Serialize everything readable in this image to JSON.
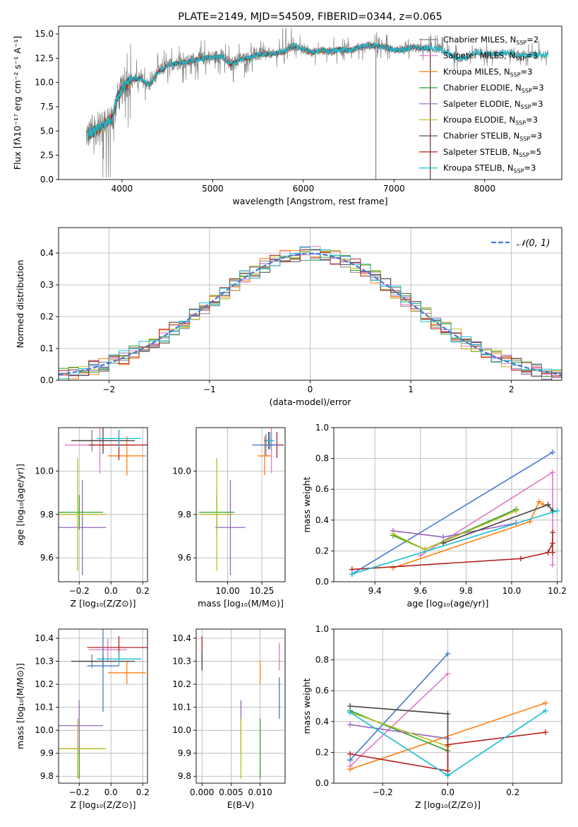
{
  "colors": {
    "chabrier_miles": "#7f7f7f",
    "salpeter_miles": "#e377c2",
    "kroupa_miles": "#ff7f0e",
    "chabrier_elodie": "#2ca02c",
    "salpeter_elodie": "#9467bd",
    "kroupa_elodie": "#bcbd22",
    "chabrier_stelib": "#444444",
    "salpeter_stelib": "#b22222",
    "kroupa_stelib": "#17becf",
    "normal": "#4878cf"
  },
  "chart_data": [
    {
      "id": "spectrum",
      "type": "line",
      "title": "PLATE=2149, MJD=54509, FIBERID=0344, z=0.065",
      "xlabel": "wavelength [Angstrom, rest frame]",
      "ylabel": "Flux [fλ10⁻¹⁷ erg cm⁻² s⁻¹ A⁻¹]",
      "xlim": [
        3300,
        8850
      ],
      "ylim": [
        0,
        15.8
      ],
      "xticks": [
        4000,
        5000,
        6000,
        7000,
        8000
      ],
      "yticks": [
        0.0,
        2.5,
        5.0,
        7.5,
        10.0,
        12.5,
        15.0
      ],
      "legend_position": "right",
      "legend": [
        {
          "key": "chabrier_miles",
          "pre": "Chabrier MILES, N",
          "sub": "SSP",
          "post": "=2"
        },
        {
          "key": "salpeter_miles",
          "pre": "Salpeter MILES, N",
          "sub": "SSP",
          "post": "=3"
        },
        {
          "key": "kroupa_miles",
          "pre": "Kroupa MILES, N",
          "sub": "SSP",
          "post": "=3"
        },
        {
          "key": "chabrier_elodie",
          "pre": "Chabrier ELODIE, N",
          "sub": "SSP",
          "post": "=3"
        },
        {
          "key": "salpeter_elodie",
          "pre": "Salpeter ELODIE, N",
          "sub": "SSP",
          "post": "=3"
        },
        {
          "key": "kroupa_elodie",
          "pre": "Kroupa ELODIE, N",
          "sub": "SSP",
          "post": "=3"
        },
        {
          "key": "chabrier_stelib",
          "pre": "Chabrier STELIB, N",
          "sub": "SSP",
          "post": "=3"
        },
        {
          "key": "salpeter_stelib",
          "pre": "Salpeter STELIB, N",
          "sub": "SSP",
          "post": "=5"
        },
        {
          "key": "kroupa_stelib",
          "pre": "Kroupa STELIB, N",
          "sub": "SSP",
          "post": "=3"
        }
      ],
      "continuum": [
        [
          3600,
          4.5
        ],
        [
          3700,
          5.0
        ],
        [
          3800,
          5.6
        ],
        [
          3900,
          6.5
        ],
        [
          3950,
          8.5
        ],
        [
          4000,
          9.2
        ],
        [
          4100,
          10.3
        ],
        [
          4200,
          10.4
        ],
        [
          4300,
          9.7
        ],
        [
          4400,
          11.1
        ],
        [
          4500,
          11.7
        ],
        [
          4600,
          12.0
        ],
        [
          4700,
          12.1
        ],
        [
          4800,
          12.3
        ],
        [
          4900,
          12.5
        ],
        [
          5000,
          12.6
        ],
        [
          5100,
          12.7
        ],
        [
          5200,
          11.8
        ],
        [
          5300,
          12.4
        ],
        [
          5400,
          12.5
        ],
        [
          5500,
          12.9
        ],
        [
          5600,
          12.9
        ],
        [
          5700,
          13.0
        ],
        [
          5800,
          13.2
        ],
        [
          5900,
          13.8
        ],
        [
          6000,
          13.4
        ],
        [
          6100,
          13.1
        ],
        [
          6200,
          13.3
        ],
        [
          6300,
          13.2
        ],
        [
          6400,
          13.4
        ],
        [
          6500,
          13.3
        ],
        [
          6600,
          13.6
        ],
        [
          6700,
          13.8
        ],
        [
          6800,
          13.8
        ],
        [
          6900,
          13.6
        ],
        [
          7000,
          13.4
        ],
        [
          7100,
          13.3
        ],
        [
          7200,
          13.6
        ],
        [
          7300,
          13.5
        ],
        [
          7400,
          13.5
        ],
        [
          7500,
          13.5
        ],
        [
          7600,
          13.0
        ],
        [
          7700,
          12.5
        ],
        [
          7800,
          12.6
        ],
        [
          7900,
          13.1
        ],
        [
          8000,
          13.0
        ],
        [
          8100,
          12.9
        ],
        [
          8200,
          13.1
        ],
        [
          8300,
          13.0
        ],
        [
          8400,
          12.8
        ],
        [
          8500,
          12.8
        ],
        [
          8600,
          12.9
        ],
        [
          8700,
          12.8
        ]
      ],
      "model_ends": {
        "miles": 7400,
        "elodie": 6800,
        "stelib": 7400
      }
    },
    {
      "id": "residuals",
      "type": "step-histogram",
      "xlabel": "(data-model)/error",
      "ylabel": "Normed distribution",
      "xlim": [
        -2.5,
        2.5
      ],
      "ylim": [
        0,
        0.48
      ],
      "xticks": [
        -2,
        -1,
        0,
        1,
        2
      ],
      "yticks": [
        0.0,
        0.1,
        0.2,
        0.3,
        0.4
      ],
      "legend_label": "𝒩(0, 1)",
      "legend_position": "top-right",
      "grid": true
    },
    {
      "id": "age_vs_z",
      "type": "errorbar",
      "xlabel": "Z [log₁₀(Z/Z⊙)]",
      "ylabel": "age  [log₁₀(age/yr)]",
      "xlim": [
        -0.33,
        0.23
      ],
      "ylim": [
        9.49,
        10.2
      ],
      "xticks": [
        -0.2,
        0.0,
        0.2
      ],
      "yticks": [
        9.6,
        9.8,
        10.0
      ],
      "points": [
        {
          "key": "chabrier_miles",
          "x": -0.12,
          "y": 10.14,
          "xerr": 0.07,
          "yerr": 0.05
        },
        {
          "key": "salpeter_miles",
          "x": -0.07,
          "y": 10.12,
          "xerr": 0.22,
          "yerr": 0.13
        },
        {
          "key": "kroupa_miles",
          "x": 0.1,
          "y": 10.07,
          "xerr": 0.12,
          "yerr": 0.09
        },
        {
          "key": "chabrier_elodie",
          "x": -0.2,
          "y": 9.81,
          "xerr": 0.15,
          "yerr": 0.08
        },
        {
          "key": "salpeter_elodie",
          "x": -0.18,
          "y": 9.74,
          "xerr": 0.15,
          "yerr": 0.22
        },
        {
          "key": "kroupa_elodie",
          "x": -0.21,
          "y": 9.8,
          "xerr": 0.18,
          "yerr": 0.26
        },
        {
          "key": "chabrier_stelib",
          "x": -0.05,
          "y": 10.14,
          "xerr": 0.2,
          "yerr": 0.06
        },
        {
          "key": "salpeter_stelib",
          "x": 0.05,
          "y": 10.12,
          "xerr": 0.19,
          "yerr": 0.07
        },
        {
          "key": "kroupa_stelib",
          "x": 0.05,
          "y": 10.15,
          "xerr": 0.14,
          "yerr": 0.04
        }
      ]
    },
    {
      "id": "age_vs_mass",
      "type": "errorbar",
      "xlabel": "mass [log₁₀(M/M⊙)]",
      "ylabel": "",
      "xlim": [
        9.77,
        10.42
      ],
      "ylim": [
        9.49,
        10.2
      ],
      "xticks": [
        10.0,
        10.25
      ],
      "yticks": [
        9.6,
        9.8,
        10.0
      ],
      "points": [
        {
          "key": "chabrier_miles",
          "x": 10.3,
          "y": 10.14,
          "xerr": 0.03,
          "yerr": 0.04
        },
        {
          "key": "salpeter_miles",
          "x": 10.32,
          "y": 10.12,
          "xerr": 0.06,
          "yerr": 0.13
        },
        {
          "key": "kroupa_miles",
          "x": 10.27,
          "y": 10.07,
          "xerr": 0.05,
          "yerr": 0.09
        },
        {
          "key": "chabrier_elodie",
          "x": 9.92,
          "y": 9.81,
          "xerr": 0.13,
          "yerr": 0.08
        },
        {
          "key": "salpeter_elodie",
          "x": 10.02,
          "y": 9.74,
          "xerr": 0.11,
          "yerr": 0.22
        },
        {
          "key": "kroupa_elodie",
          "x": 9.92,
          "y": 9.8,
          "xerr": 0.12,
          "yerr": 0.26
        },
        {
          "key": "chabrier_stelib",
          "x": 10.3,
          "y": 10.14,
          "xerr": 0.03,
          "yerr": 0.04
        },
        {
          "key": "salpeter_stelib",
          "x": 10.36,
          "y": 10.12,
          "xerr": 0.05,
          "yerr": 0.06
        },
        {
          "key": "kroupa_stelib",
          "x": 10.31,
          "y": 10.14,
          "xerr": 0.03,
          "yerr": 0.04
        },
        {
          "key": "normal",
          "x": 10.28,
          "y": 10.12,
          "xerr": 0.1,
          "yerr": 0.05
        }
      ]
    },
    {
      "id": "weight_vs_age",
      "type": "line",
      "xlabel": "age  [log₁₀(age/yr)]",
      "ylabel": "mass weight",
      "xlim": [
        9.22,
        10.22
      ],
      "ylim": [
        0,
        1.0
      ],
      "xticks": [
        9.4,
        9.6,
        9.8,
        10.0,
        10.2
      ],
      "yticks": [
        0.0,
        0.2,
        0.4,
        0.6,
        0.8,
        1.0
      ],
      "series": [
        {
          "key": "normal",
          "x": [
            9.3,
            10.18
          ],
          "y": [
            0.05,
            0.84
          ]
        },
        {
          "key": "salpeter_miles",
          "x": [
            9.6,
            10.18,
            10.18
          ],
          "y": [
            0.17,
            0.71,
            0.11
          ]
        },
        {
          "key": "kroupa_miles",
          "x": [
            9.48,
            10.08,
            10.12,
            10.14
          ],
          "y": [
            0.09,
            0.39,
            0.52,
            0.5
          ]
        },
        {
          "key": "chabrier_elodie",
          "x": [
            9.48,
            9.62,
            10.02
          ],
          "y": [
            0.3,
            0.21,
            0.47
          ]
        },
        {
          "key": "salpeter_elodie",
          "x": [
            9.48,
            9.7,
            10.02
          ],
          "y": [
            0.33,
            0.29,
            0.38
          ]
        },
        {
          "key": "kroupa_elodie",
          "x": [
            9.48,
            9.62,
            10.02
          ],
          "y": [
            0.31,
            0.21,
            0.46
          ]
        },
        {
          "key": "chabrier_stelib",
          "x": [
            9.7,
            10.16,
            10.18
          ],
          "y": [
            0.25,
            0.5,
            0.46
          ]
        },
        {
          "key": "salpeter_stelib",
          "x": [
            9.3,
            10.04,
            10.16,
            10.18,
            10.18,
            10.18
          ],
          "y": [
            0.08,
            0.15,
            0.19,
            0.25,
            0.32,
            0.19
          ]
        },
        {
          "key": "kroupa_stelib",
          "x": [
            9.3,
            10.2
          ],
          "y": [
            0.05,
            0.46
          ]
        }
      ]
    },
    {
      "id": "mass_vs_z",
      "type": "errorbar",
      "xlabel": "Z [log₁₀(Z/Z⊙)]",
      "ylabel": "mass [log₁₀(M/M⊙)]",
      "xlim": [
        -0.33,
        0.23
      ],
      "ylim": [
        9.77,
        10.44
      ],
      "xticks": [
        -0.2,
        0.0,
        0.2
      ],
      "yticks": [
        9.8,
        9.9,
        10.0,
        10.1,
        10.2,
        10.3,
        10.4
      ],
      "points": [
        {
          "key": "chabrier_miles",
          "x": -0.12,
          "y": 10.3,
          "xerr": 0.07,
          "yerr": 0.03
        },
        {
          "key": "salpeter_miles",
          "x": -0.02,
          "y": 10.35,
          "xerr": 0.12,
          "yerr": 0.05
        },
        {
          "key": "kroupa_miles",
          "x": 0.1,
          "y": 10.25,
          "xerr": 0.12,
          "yerr": 0.05
        },
        {
          "key": "chabrier_elodie",
          "x": -0.2,
          "y": 9.92,
          "xerr": 0.15,
          "yerr": 0.13
        },
        {
          "key": "salpeter_elodie",
          "x": -0.2,
          "y": 10.02,
          "xerr": 0.15,
          "yerr": 0.11
        },
        {
          "key": "kroupa_elodie",
          "x": -0.21,
          "y": 9.92,
          "xerr": 0.18,
          "yerr": 0.13
        },
        {
          "key": "chabrier_stelib",
          "x": -0.05,
          "y": 10.3,
          "xerr": 0.2,
          "yerr": 0.03
        },
        {
          "key": "salpeter_stelib",
          "x": 0.05,
          "y": 10.36,
          "xerr": 0.2,
          "yerr": 0.05
        },
        {
          "key": "kroupa_stelib",
          "x": 0.05,
          "y": 10.31,
          "xerr": 0.14,
          "yerr": 0.03
        },
        {
          "key": "normal",
          "x": -0.05,
          "y": 10.28,
          "xerr": 0.1,
          "yerr": 0.2
        }
      ]
    },
    {
      "id": "mass_vs_ebv",
      "type": "errorbar",
      "xlabel": "E(B-V)",
      "ylabel": "",
      "xlim": [
        -0.001,
        0.0143
      ],
      "ylim": [
        9.77,
        10.44
      ],
      "xticks": [
        0.0,
        0.005,
        0.01
      ],
      "xticklabels": [
        "0.000",
        "0.005",
        "0.010"
      ],
      "yticks": [
        9.8,
        9.9,
        10.0,
        10.1,
        10.2,
        10.3,
        10.4
      ],
      "points": [
        {
          "key": "salpeter_stelib",
          "x": 0.0,
          "y": 10.36,
          "xerr": 0,
          "yerr": 0.05
        },
        {
          "key": "kroupa_stelib",
          "x": 0.0,
          "y": 10.31,
          "xerr": 0,
          "yerr": 0.03
        },
        {
          "key": "chabrier_stelib",
          "x": 0.0,
          "y": 10.3,
          "xerr": 0,
          "yerr": 0.04
        },
        {
          "key": "salpeter_elodie",
          "x": 0.0067,
          "y": 10.02,
          "xerr": 0,
          "yerr": 0.11
        },
        {
          "key": "kroupa_elodie",
          "x": 0.0067,
          "y": 9.92,
          "xerr": 0,
          "yerr": 0.13
        },
        {
          "key": "chabrier_elodie",
          "x": 0.01,
          "y": 9.92,
          "xerr": 0,
          "yerr": 0.13
        },
        {
          "key": "kroupa_miles",
          "x": 0.01,
          "y": 10.25,
          "xerr": 0,
          "yerr": 0.05
        },
        {
          "key": "salpeter_miles",
          "x": 0.0133,
          "y": 10.32,
          "xerr": 0,
          "yerr": 0.06
        },
        {
          "key": "normal",
          "x": 0.0133,
          "y": 10.14,
          "xerr": 0,
          "yerr": 0.09
        }
      ]
    },
    {
      "id": "weight_vs_z",
      "type": "line",
      "xlabel": "Z [log₁₀(Z/Z⊙)]",
      "ylabel": "mass weight",
      "xlim": [
        -0.35,
        0.35
      ],
      "ylim": [
        0,
        1.0
      ],
      "xticks": [
        -0.2,
        0.0,
        0.2
      ],
      "yticks": [
        0.0,
        0.2,
        0.4,
        0.6,
        0.8,
        1.0
      ],
      "series": [
        {
          "key": "normal",
          "x": [
            -0.3,
            0.0
          ],
          "y": [
            0.15,
            0.84
          ]
        },
        {
          "key": "salpeter_miles",
          "x": [
            -0.3,
            0.0
          ],
          "y": [
            0.11,
            0.71
          ]
        },
        {
          "key": "kroupa_miles",
          "x": [
            -0.3,
            0.3
          ],
          "y": [
            0.09,
            0.52
          ]
        },
        {
          "key": "chabrier_elodie",
          "x": [
            -0.3,
            0.0
          ],
          "y": [
            0.47,
            0.21
          ]
        },
        {
          "key": "salpeter_elodie",
          "x": [
            -0.3,
            0.0
          ],
          "y": [
            0.38,
            0.29
          ]
        },
        {
          "key": "kroupa_elodie",
          "x": [
            -0.3,
            0.0
          ],
          "y": [
            0.46,
            0.24
          ]
        },
        {
          "key": "chabrier_stelib",
          "x": [
            -0.3,
            0.0,
            0.0
          ],
          "y": [
            0.5,
            0.45,
            0.05
          ]
        },
        {
          "key": "salpeter_stelib",
          "x": [
            -0.3,
            0.0,
            0.0,
            0.3
          ],
          "y": [
            0.19,
            0.08,
            0.25,
            0.33
          ]
        },
        {
          "key": "kroupa_stelib",
          "x": [
            -0.3,
            0.0,
            0.3
          ],
          "y": [
            0.46,
            0.05,
            0.47
          ]
        }
      ]
    }
  ]
}
